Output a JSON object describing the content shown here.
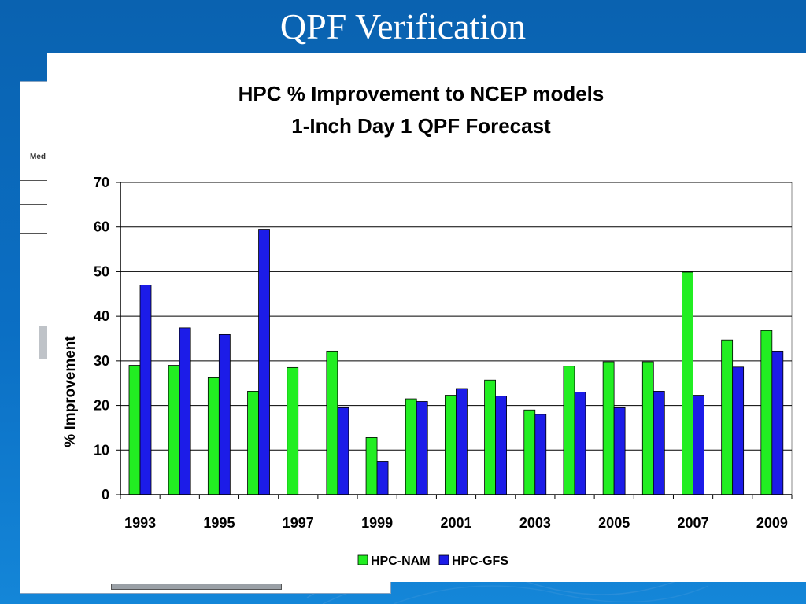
{
  "slide": {
    "title": "QPF Verification"
  },
  "background_fragment": {
    "text": "Med"
  },
  "colors": {
    "nam": "#22ee22",
    "gfs": "#1c1ce8",
    "background": "#0b6fc4"
  },
  "chart_data": {
    "type": "bar",
    "title": "HPC % Improvement to NCEP models",
    "subtitle": "1-Inch Day 1 QPF Forecast",
    "ylabel": "% Improvement",
    "xlabel": "",
    "ylim": [
      0,
      70
    ],
    "yticks": [
      0,
      10,
      20,
      30,
      40,
      50,
      60,
      70
    ],
    "categories": [
      "1993",
      "1994",
      "1995",
      "1996",
      "1997",
      "1998",
      "1999",
      "2000",
      "2001",
      "2002",
      "2003",
      "2004",
      "2005",
      "2006",
      "2007",
      "2008",
      "2009"
    ],
    "xtick_labels": [
      "1993",
      "1995",
      "1997",
      "1999",
      "2001",
      "2003",
      "2005",
      "2007",
      "2009"
    ],
    "grid": true,
    "legend_position": "bottom",
    "series": [
      {
        "name": "HPC-NAM",
        "color": "#22ee22",
        "values": [
          29,
          29,
          26.2,
          23.2,
          28.5,
          32.2,
          12.8,
          21.5,
          22.3,
          25.7,
          19,
          28.8,
          29.8,
          29.8,
          49.9,
          34.7,
          36.8
        ]
      },
      {
        "name": "HPC-GFS",
        "color": "#1c1ce8",
        "values": [
          47,
          37.4,
          35.9,
          59.5,
          null,
          19.5,
          7.5,
          20.9,
          23.8,
          22.1,
          18,
          23,
          19.5,
          23.2,
          22.3,
          28.6,
          32.2
        ]
      }
    ]
  }
}
